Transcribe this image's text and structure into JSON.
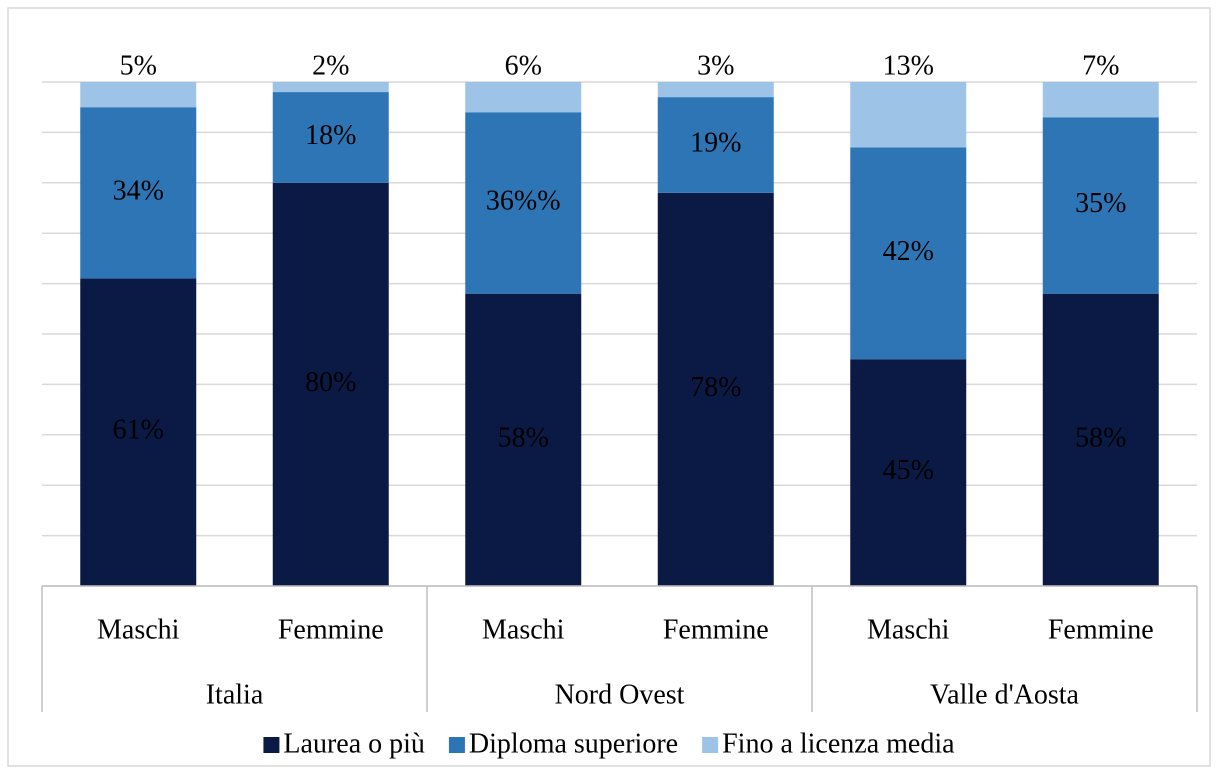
{
  "chart_data": {
    "type": "stacked_bar",
    "categories": [
      "Maschi",
      "Femmine",
      "Maschi",
      "Femmine",
      "Maschi",
      "Femmine"
    ],
    "groups": [
      "Italia",
      "Nord Ovest",
      "Valle d'Aosta"
    ],
    "series": [
      {
        "name": "Laurea o più",
        "color": "#0b1a45",
        "values": [
          61,
          80,
          58,
          78,
          45,
          58
        ],
        "value_labels": [
          "61%",
          "80%",
          "58%",
          "78%",
          "45%",
          "58%"
        ]
      },
      {
        "name": "Diploma superiore",
        "color": "#2e75b6",
        "values": [
          34,
          18,
          36,
          19,
          42,
          35
        ],
        "value_labels": [
          "34%",
          "18%",
          "36%%",
          "19%",
          "42%",
          "35%"
        ]
      },
      {
        "name": "Fino a licenza media",
        "color": "#9dc3e6",
        "values": [
          5,
          2,
          6,
          3,
          13,
          7
        ],
        "value_labels": [
          "5%",
          "2%",
          "6%",
          "3%",
          "13%",
          "7%"
        ]
      }
    ],
    "ylim": [
      0,
      100
    ],
    "yticks": [
      0,
      10,
      20,
      30,
      40,
      50,
      60,
      70,
      80,
      90,
      100
    ],
    "grid": true
  }
}
